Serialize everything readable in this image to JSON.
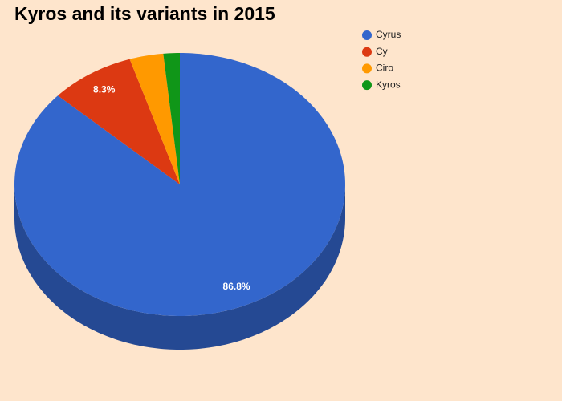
{
  "chart_data": {
    "type": "pie3d",
    "title": "Kyros and its variants in 2015",
    "categories": [
      "Cyrus",
      "Cy",
      "Ciro",
      "Kyros"
    ],
    "values": [
      86.8,
      8.3,
      3.3,
      1.6
    ],
    "value_labels": [
      "86.8%",
      "8.3%",
      null,
      null
    ],
    "colors": [
      "#3366cc",
      "#dc3912",
      "#ff9900",
      "#109618"
    ],
    "legend": "top-right"
  }
}
